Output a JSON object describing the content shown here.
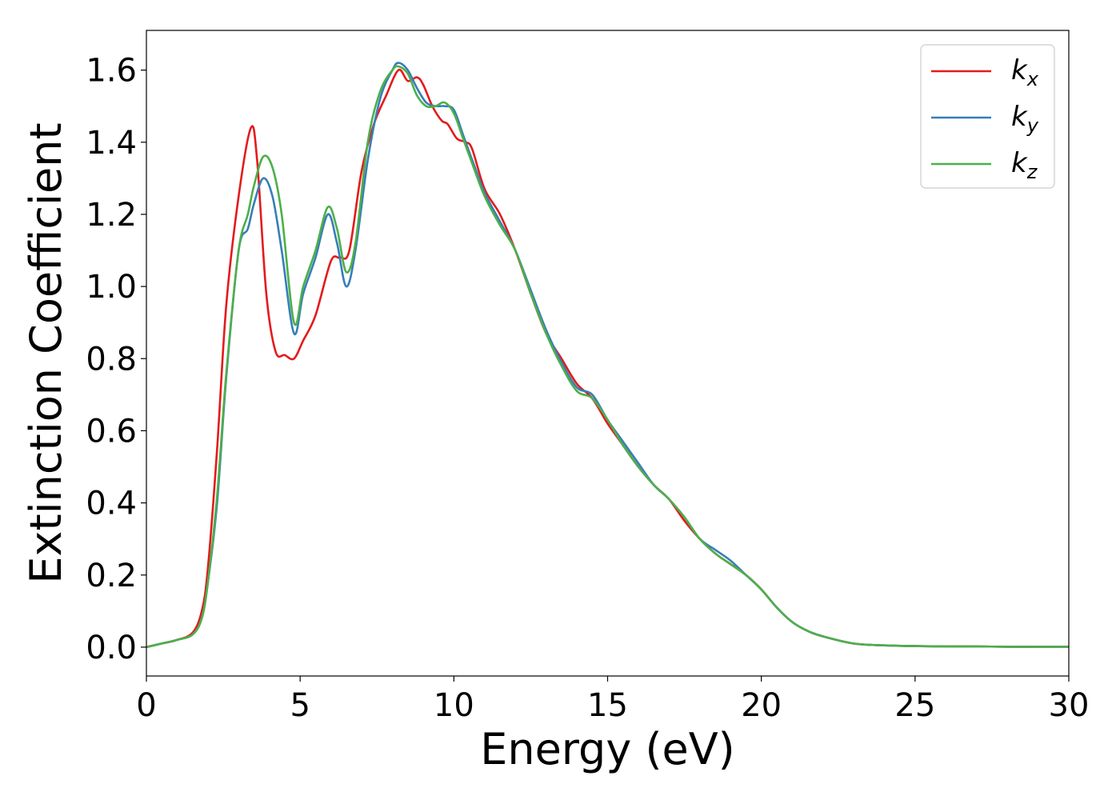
{
  "chart_data": {
    "type": "line",
    "xlabel": "Energy (eV)",
    "ylabel": "Extinction Coefficient",
    "xlim": [
      0,
      30
    ],
    "ylim": [
      -0.08,
      1.71
    ],
    "xticks": [
      0,
      5,
      10,
      15,
      20,
      25,
      30
    ],
    "yticks": [
      0.0,
      0.2,
      0.4,
      0.6,
      0.8,
      1.0,
      1.2,
      1.4,
      1.6
    ],
    "xtick_labels": [
      "0",
      "5",
      "10",
      "15",
      "20",
      "25",
      "30"
    ],
    "ytick_labels": [
      "0.0",
      "0.2",
      "0.4",
      "0.6",
      "0.8",
      "1.0",
      "1.2",
      "1.4",
      "1.6"
    ],
    "grid": false,
    "legend_position": "top-right",
    "series": [
      {
        "name": "k_x",
        "base": "k",
        "sub": "x",
        "color": "#e41a1c",
        "x": [
          0,
          0.5,
          1.0,
          1.5,
          1.8,
          2.0,
          2.3,
          2.6,
          3.0,
          3.4,
          3.6,
          3.9,
          4.2,
          4.5,
          4.8,
          5.1,
          5.5,
          6.0,
          6.3,
          6.6,
          7.0,
          7.4,
          7.8,
          8.2,
          8.5,
          8.8,
          9.0,
          9.3,
          9.6,
          9.8,
          10.1,
          10.4,
          10.6,
          11.0,
          11.5,
          12.0,
          12.5,
          13.0,
          13.5,
          14.0,
          14.5,
          15.0,
          15.5,
          16.0,
          16.5,
          17.0,
          17.5,
          18.0,
          18.5,
          19.0,
          19.5,
          20.0,
          20.5,
          21.0,
          21.5,
          22.0,
          23.0,
          24.0,
          25.0,
          26.0,
          27.0,
          28.0,
          29.0,
          30.0
        ],
        "y": [
          0.0,
          0.01,
          0.02,
          0.04,
          0.1,
          0.22,
          0.55,
          0.95,
          1.25,
          1.44,
          1.35,
          0.98,
          0.82,
          0.81,
          0.8,
          0.85,
          0.92,
          1.07,
          1.08,
          1.1,
          1.32,
          1.45,
          1.53,
          1.6,
          1.57,
          1.58,
          1.56,
          1.5,
          1.46,
          1.45,
          1.41,
          1.4,
          1.38,
          1.27,
          1.2,
          1.1,
          0.98,
          0.87,
          0.8,
          0.73,
          0.69,
          0.62,
          0.56,
          0.5,
          0.45,
          0.41,
          0.35,
          0.3,
          0.26,
          0.23,
          0.2,
          0.16,
          0.11,
          0.07,
          0.045,
          0.03,
          0.01,
          0.005,
          0.003,
          0.002,
          0.002,
          0.001,
          0.001,
          0.001
        ]
      },
      {
        "name": "k_y",
        "base": "k",
        "sub": "y",
        "color": "#377eb8",
        "x": [
          0,
          0.5,
          1.0,
          1.5,
          1.8,
          2.0,
          2.3,
          2.6,
          3.0,
          3.3,
          3.5,
          3.8,
          4.1,
          4.4,
          4.8,
          5.1,
          5.5,
          5.9,
          6.2,
          6.5,
          6.8,
          7.2,
          7.6,
          8.0,
          8.2,
          8.5,
          8.8,
          9.1,
          9.4,
          9.7,
          10.0,
          10.3,
          10.6,
          11.0,
          11.5,
          12.0,
          12.5,
          13.0,
          13.5,
          14.0,
          14.5,
          15.0,
          15.5,
          16.0,
          16.5,
          17.0,
          17.5,
          18.0,
          18.5,
          19.0,
          19.5,
          20.0,
          20.5,
          21.0,
          21.5,
          22.0,
          23.0,
          24.0,
          25.0,
          26.0,
          27.0,
          28.0,
          29.0,
          30.0
        ],
        "y": [
          0.0,
          0.01,
          0.02,
          0.035,
          0.08,
          0.18,
          0.4,
          0.75,
          1.1,
          1.16,
          1.23,
          1.3,
          1.25,
          1.1,
          0.87,
          0.98,
          1.08,
          1.2,
          1.12,
          1.0,
          1.1,
          1.35,
          1.52,
          1.6,
          1.62,
          1.6,
          1.55,
          1.51,
          1.5,
          1.5,
          1.49,
          1.42,
          1.35,
          1.26,
          1.18,
          1.1,
          0.99,
          0.88,
          0.79,
          0.72,
          0.7,
          0.63,
          0.57,
          0.51,
          0.45,
          0.41,
          0.36,
          0.3,
          0.27,
          0.24,
          0.2,
          0.16,
          0.11,
          0.07,
          0.045,
          0.03,
          0.01,
          0.005,
          0.003,
          0.002,
          0.002,
          0.001,
          0.001,
          0.001
        ]
      },
      {
        "name": "k_z",
        "base": "k",
        "sub": "z",
        "color": "#4daf4a",
        "x": [
          0,
          0.5,
          1.0,
          1.5,
          1.8,
          2.0,
          2.3,
          2.6,
          3.0,
          3.3,
          3.5,
          3.8,
          4.1,
          4.4,
          4.8,
          5.1,
          5.5,
          5.9,
          6.2,
          6.5,
          6.8,
          7.2,
          7.6,
          8.0,
          8.2,
          8.5,
          8.8,
          9.1,
          9.4,
          9.7,
          10.0,
          10.3,
          10.6,
          11.0,
          11.5,
          12.0,
          12.5,
          13.0,
          13.5,
          14.0,
          14.5,
          15.0,
          15.5,
          16.0,
          16.5,
          17.0,
          17.5,
          18.0,
          18.5,
          19.0,
          19.5,
          20.0,
          20.5,
          21.0,
          21.5,
          22.0,
          23.0,
          24.0,
          25.0,
          26.0,
          27.0,
          28.0,
          29.0,
          30.0
        ],
        "y": [
          0.0,
          0.01,
          0.02,
          0.035,
          0.08,
          0.18,
          0.42,
          0.76,
          1.1,
          1.2,
          1.28,
          1.36,
          1.33,
          1.2,
          0.9,
          1.0,
          1.1,
          1.22,
          1.16,
          1.04,
          1.12,
          1.4,
          1.54,
          1.6,
          1.61,
          1.59,
          1.53,
          1.5,
          1.5,
          1.51,
          1.48,
          1.41,
          1.34,
          1.25,
          1.17,
          1.1,
          0.98,
          0.87,
          0.78,
          0.71,
          0.69,
          0.63,
          0.56,
          0.5,
          0.45,
          0.41,
          0.36,
          0.3,
          0.26,
          0.23,
          0.2,
          0.16,
          0.11,
          0.07,
          0.045,
          0.03,
          0.01,
          0.005,
          0.003,
          0.002,
          0.002,
          0.001,
          0.001,
          0.001
        ]
      }
    ]
  }
}
